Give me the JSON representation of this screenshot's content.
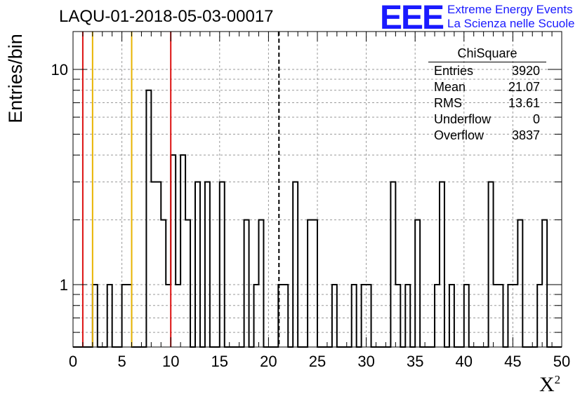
{
  "title": "LAQU-01-2018-05-03-00017",
  "logo": {
    "mark": "EEE",
    "line1": "Extreme Energy Events",
    "line2": "La Scienza nelle Scuole",
    "color": "#1a1aff"
  },
  "stats_box": {
    "title": "ChiSquare",
    "rows": [
      {
        "label": "Entries",
        "value": "3920"
      },
      {
        "label": "Mean",
        "value": "21.07"
      },
      {
        "label": "RMS",
        "value": "13.61"
      },
      {
        "label": "Underflow",
        "value": "0"
      },
      {
        "label": "Overflow",
        "value": "3837"
      }
    ]
  },
  "chart_data": {
    "type": "histogram",
    "ylabel": "Entries/bin",
    "xlabel": "X²",
    "xlim": [
      0,
      50
    ],
    "ylim": [
      0.55,
      16
    ],
    "yscale": "log",
    "grid": true,
    "x_ticks": [
      0,
      5,
      10,
      15,
      20,
      25,
      30,
      35,
      40,
      45,
      50
    ],
    "x_tick_labels": [
      "0",
      "5",
      "10",
      "15",
      "20",
      "25",
      "30",
      "35",
      "40",
      "45",
      "50"
    ],
    "y_ticks": [
      1,
      10
    ],
    "y_tick_labels": [
      "1",
      "10"
    ],
    "bin_width": 0.5,
    "bins": [
      {
        "x": 2.0,
        "y": 1
      },
      {
        "x": 3.5,
        "y": 1
      },
      {
        "x": 5.0,
        "y": 1
      },
      {
        "x": 5.5,
        "y": 1
      },
      {
        "x": 7.5,
        "y": 8
      },
      {
        "x": 8.0,
        "y": 3
      },
      {
        "x": 8.5,
        "y": 3
      },
      {
        "x": 9.0,
        "y": 2
      },
      {
        "x": 9.5,
        "y": 1
      },
      {
        "x": 10.0,
        "y": 4
      },
      {
        "x": 10.5,
        "y": 1
      },
      {
        "x": 11.0,
        "y": 4
      },
      {
        "x": 11.5,
        "y": 2
      },
      {
        "x": 12.5,
        "y": 3
      },
      {
        "x": 13.5,
        "y": 3
      },
      {
        "x": 15.0,
        "y": 3
      },
      {
        "x": 17.5,
        "y": 2
      },
      {
        "x": 18.5,
        "y": 1
      },
      {
        "x": 19.0,
        "y": 2
      },
      {
        "x": 21.0,
        "y": 1
      },
      {
        "x": 21.5,
        "y": 1
      },
      {
        "x": 22.5,
        "y": 3
      },
      {
        "x": 24.0,
        "y": 2
      },
      {
        "x": 24.5,
        "y": 2
      },
      {
        "x": 26.5,
        "y": 1
      },
      {
        "x": 28.5,
        "y": 1
      },
      {
        "x": 29.5,
        "y": 1
      },
      {
        "x": 30.0,
        "y": 1
      },
      {
        "x": 32.5,
        "y": 3
      },
      {
        "x": 33.0,
        "y": 1
      },
      {
        "x": 34.0,
        "y": 1
      },
      {
        "x": 35.0,
        "y": 2
      },
      {
        "x": 37.0,
        "y": 1
      },
      {
        "x": 37.5,
        "y": 3
      },
      {
        "x": 38.5,
        "y": 1
      },
      {
        "x": 40.0,
        "y": 1
      },
      {
        "x": 42.5,
        "y": 3
      },
      {
        "x": 43.0,
        "y": 1
      },
      {
        "x": 43.5,
        "y": 1
      },
      {
        "x": 44.5,
        "y": 1
      },
      {
        "x": 45.0,
        "y": 1
      },
      {
        "x": 45.5,
        "y": 2
      },
      {
        "x": 47.5,
        "y": 1
      },
      {
        "x": 48.0,
        "y": 2
      }
    ],
    "vertical_lines": [
      {
        "x": 1,
        "color": "#dd1111",
        "style": "solid"
      },
      {
        "x": 2,
        "color": "#e8b400",
        "style": "solid"
      },
      {
        "x": 6,
        "color": "#e8b400",
        "style": "solid"
      },
      {
        "x": 10,
        "color": "#dd1111",
        "style": "solid"
      },
      {
        "x": 21.07,
        "color": "#000000",
        "style": "dashed"
      }
    ]
  }
}
